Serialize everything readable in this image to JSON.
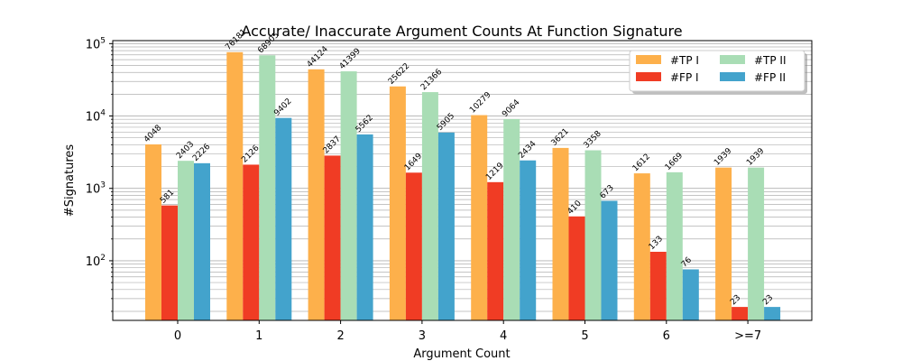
{
  "chart_data": {
    "type": "bar",
    "title": "Accurate/ Inaccurate Argument Counts At Function Signature",
    "xlabel": "Argument Count",
    "ylabel": "#Signatures",
    "yscale": "log",
    "ylim": [
      15,
      110000
    ],
    "grid": "y-major-and-minor",
    "legend_position": "top-right",
    "categories": [
      "0",
      "1",
      "2",
      "3",
      "4",
      "5",
      "6",
      ">=7"
    ],
    "y_ticks": [
      {
        "value": 100,
        "base": "10",
        "exp": "2"
      },
      {
        "value": 1000,
        "base": "10",
        "exp": "3"
      },
      {
        "value": 10000,
        "base": "10",
        "exp": "4"
      },
      {
        "value": 100000,
        "base": "10",
        "exp": "5"
      }
    ],
    "series": [
      {
        "name": "#TP I",
        "color": "#fdb04b",
        "values": [
          4048,
          76181,
          44124,
          25622,
          10279,
          3621,
          1612,
          1939
        ]
      },
      {
        "name": "#FP I",
        "color": "#f03c24",
        "values": [
          581,
          2126,
          2837,
          1649,
          1219,
          410,
          133,
          23
        ]
      },
      {
        "name": "#TP II",
        "color": "#a9ddb5",
        "values": [
          2403,
          68905,
          41399,
          21366,
          9064,
          3358,
          1669,
          1939
        ]
      },
      {
        "name": "#FP II",
        "color": "#43a3cc",
        "values": [
          2226,
          9402,
          5562,
          5905,
          2434,
          673,
          76,
          23
        ]
      }
    ]
  }
}
